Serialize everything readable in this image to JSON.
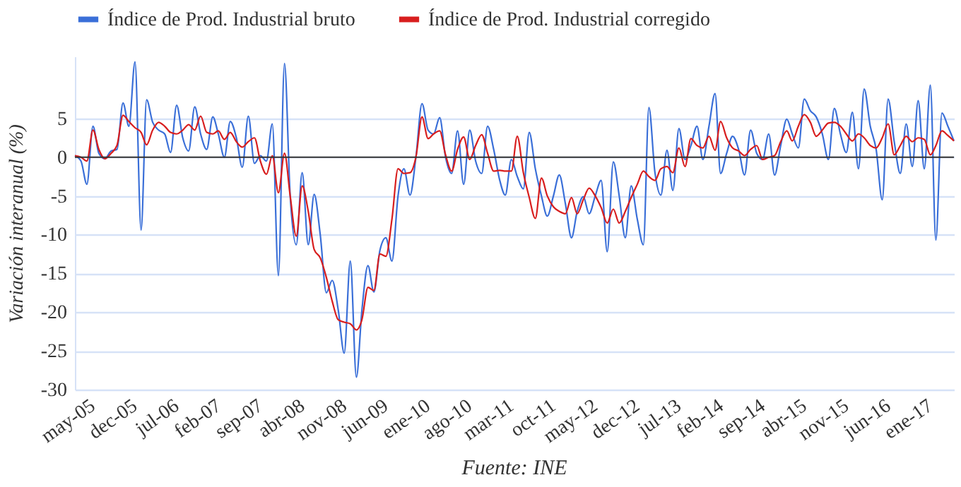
{
  "chart_data": {
    "type": "line",
    "ylabel": "Variación interanual (%)",
    "annotations": [
      "Fuente: INE"
    ],
    "x": [
      "2005-03",
      "2005-04",
      "2005-05",
      "2005-06",
      "2005-07",
      "2005-08",
      "2005-09",
      "2005-10",
      "2005-11",
      "2005-12",
      "2006-01",
      "2006-02",
      "2006-03",
      "2006-04",
      "2006-05",
      "2006-06",
      "2006-07",
      "2006-08",
      "2006-09",
      "2006-10",
      "2006-11",
      "2006-12",
      "2007-01",
      "2007-02",
      "2007-03",
      "2007-04",
      "2007-05",
      "2007-06",
      "2007-07",
      "2007-08",
      "2007-09",
      "2007-10",
      "2007-11",
      "2007-12",
      "2008-01",
      "2008-02",
      "2008-03",
      "2008-04",
      "2008-05",
      "2008-06",
      "2008-07",
      "2008-08",
      "2008-09",
      "2008-10",
      "2008-11",
      "2008-12",
      "2009-01",
      "2009-02",
      "2009-03",
      "2009-04",
      "2009-05",
      "2009-06",
      "2009-07",
      "2009-08",
      "2009-09",
      "2009-10",
      "2009-11",
      "2009-12",
      "2010-01",
      "2010-02",
      "2010-03",
      "2010-04",
      "2010-05",
      "2010-06",
      "2010-07",
      "2010-08",
      "2010-09",
      "2010-10",
      "2010-11",
      "2010-12",
      "2011-01",
      "2011-02",
      "2011-03",
      "2011-04",
      "2011-05",
      "2011-06",
      "2011-07",
      "2011-08",
      "2011-09",
      "2011-10",
      "2011-11",
      "2011-12",
      "2012-01",
      "2012-02",
      "2012-03",
      "2012-04",
      "2012-05",
      "2012-06",
      "2012-07",
      "2012-08",
      "2012-09",
      "2012-10",
      "2012-11",
      "2012-12",
      "2013-01",
      "2013-02",
      "2013-03",
      "2013-04",
      "2013-05",
      "2013-06",
      "2013-07",
      "2013-08",
      "2013-09",
      "2013-10",
      "2013-11",
      "2013-12",
      "2014-01",
      "2014-02",
      "2014-03",
      "2014-04",
      "2014-05",
      "2014-06",
      "2014-07",
      "2014-08",
      "2014-09",
      "2014-10",
      "2014-11",
      "2014-12",
      "2015-01",
      "2015-02",
      "2015-03",
      "2015-04",
      "2015-05",
      "2015-06",
      "2015-07",
      "2015-08",
      "2015-09",
      "2015-10",
      "2015-11",
      "2015-12",
      "2016-01",
      "2016-02",
      "2016-03",
      "2016-04",
      "2016-05",
      "2016-06",
      "2016-07",
      "2016-08",
      "2016-09",
      "2016-10",
      "2016-11",
      "2016-12",
      "2017-01",
      "2017-02",
      "2017-03",
      "2017-04",
      "2017-05",
      "2017-06"
    ],
    "series": [
      {
        "name": "Índice de Prod. Industrial bruto",
        "color": "#3a6fd8",
        "values": [
          0.2,
          -0.5,
          -3.5,
          4,
          0.5,
          -0.2,
          0.8,
          1,
          7,
          4,
          12.3,
          -9.4,
          7.4,
          4.5,
          3.5,
          3,
          0.6,
          6.7,
          2.5,
          0.8,
          6.5,
          3,
          1,
          5.2,
          3,
          0,
          4.6,
          2.5,
          -1.3,
          5.3,
          -0.8,
          0.2,
          -0.5,
          4.3,
          -15.3,
          12.1,
          -5,
          -11.3,
          -2,
          -11.3,
          -4.8,
          -10,
          -17.5,
          -15.9,
          -19.8,
          -25.3,
          -13.4,
          -28.4,
          -19.8,
          -14,
          -17.4,
          -12,
          -10.4,
          -13.4,
          -5,
          -1.5,
          -4.9,
          0,
          6.9,
          3.5,
          3,
          5.1,
          0,
          -2.1,
          3.4,
          -3.5,
          3.5,
          -0.5,
          -2.1,
          4,
          1,
          -3,
          -4.9,
          -0.3,
          -2.5,
          -4.1,
          3.2,
          -1.5,
          -5,
          -7.6,
          -5,
          -2.3,
          -6,
          -10.4,
          -7,
          -5.1,
          -7.3,
          -5,
          -3,
          -12.2,
          -0.6,
          -5,
          -10.4,
          -3.7,
          -8,
          -11.3,
          6.4,
          -2,
          -4.9,
          0.9,
          -4.3,
          3.7,
          -0.3,
          1.5,
          4,
          -0.3,
          4,
          8.2,
          -2.1,
          0.5,
          2.7,
          1,
          -2.3,
          3.5,
          0.5,
          -0.3,
          3,
          -2.3,
          1.5,
          4.9,
          3,
          1.2,
          7.5,
          6,
          5.2,
          3,
          -0.3,
          6.3,
          3,
          0.6,
          5.8,
          -1.5,
          8.8,
          4,
          1,
          -5.5,
          7.5,
          2,
          -2.1,
          4.3,
          -1.2,
          7.3,
          -1.5,
          9.3,
          -10.7,
          5.7,
          4,
          2.1
        ]
      },
      {
        "name": "Índice de Prod. Industrial corregido",
        "color": "#d81e1e",
        "values": [
          0.2,
          0,
          -0.5,
          3.5,
          1,
          -0.2,
          0.5,
          1.5,
          5.4,
          4.6,
          3.8,
          3.2,
          1.6,
          3.5,
          4.5,
          4,
          3.2,
          3,
          3.5,
          4.2,
          3.5,
          5.3,
          3.2,
          3,
          3.4,
          2.3,
          3.2,
          2,
          1.3,
          2,
          2.5,
          -0.5,
          -2.2,
          0.2,
          -4.6,
          0.5,
          -5,
          -10.2,
          -3.7,
          -7,
          -11.9,
          -13,
          -15.5,
          -18.6,
          -21,
          -21.3,
          -21.5,
          -22.3,
          -21,
          -16.8,
          -17.2,
          -12.5,
          -12.8,
          -8,
          -1.5,
          -2.1,
          -2,
          0,
          5.2,
          2.4,
          3,
          3.4,
          0.3,
          -1.8,
          1,
          2.6,
          -0.3,
          1.5,
          2.9,
          0.5,
          -1.8,
          -1.7,
          -1.8,
          -1.8,
          2.7,
          -2,
          -5.2,
          -7.9,
          -2.7,
          -5,
          -6.4,
          -7,
          -7.3,
          -5.2,
          -7.3,
          -5.5,
          -4,
          -5,
          -6.5,
          -8.5,
          -6.7,
          -8.5,
          -7,
          -5.2,
          -3.5,
          -1.8,
          -2.5,
          -3,
          -1.5,
          -1.2,
          -2,
          1.2,
          -1.2,
          2.4,
          1.5,
          1.2,
          2.7,
          0.9,
          4.6,
          2.5,
          1.2,
          0.8,
          0.2,
          1,
          1.5,
          -0.3,
          0,
          0.2,
          2,
          3.4,
          2.1,
          4,
          5.5,
          4.5,
          2.7,
          3.5,
          4.4,
          4.5,
          4,
          3,
          2.1,
          3,
          2.5,
          1.5,
          1.2,
          2.5,
          4.3,
          0.3,
          1.5,
          2.7,
          2,
          2.5,
          2.3,
          0.3,
          1.5,
          3.4,
          2.8,
          2.1
        ]
      }
    ],
    "xlim": [
      "2005-03",
      "2017-06"
    ],
    "xticks": [
      {
        "value": "2005-05",
        "label": "may-05"
      },
      {
        "value": "2005-12",
        "label": "dec-05"
      },
      {
        "value": "2006-07",
        "label": "jul-06"
      },
      {
        "value": "2007-02",
        "label": "feb-07"
      },
      {
        "value": "2007-09",
        "label": "sep-07"
      },
      {
        "value": "2008-04",
        "label": "abr-08"
      },
      {
        "value": "2008-11",
        "label": "nov-08"
      },
      {
        "value": "2009-06",
        "label": "jun-09"
      },
      {
        "value": "2010-01",
        "label": "ene-10"
      },
      {
        "value": "2010-08",
        "label": "ago-10"
      },
      {
        "value": "2011-03",
        "label": "mar-11"
      },
      {
        "value": "2011-10",
        "label": "oct-11"
      },
      {
        "value": "2012-05",
        "label": "may-12"
      },
      {
        "value": "2012-12",
        "label": "dec-12"
      },
      {
        "value": "2013-07",
        "label": "jul-13"
      },
      {
        "value": "2014-02",
        "label": "feb-14"
      },
      {
        "value": "2014-09",
        "label": "sep-14"
      },
      {
        "value": "2015-04",
        "label": "abr-15"
      },
      {
        "value": "2015-11",
        "label": "nov-15"
      },
      {
        "value": "2016-06",
        "label": "jun-16"
      },
      {
        "value": "2017-01",
        "label": "ene-17"
      }
    ],
    "ylim": [
      -30,
      13
    ],
    "yticks": [
      -30,
      -25,
      -20,
      -15,
      -10,
      -5,
      0,
      5
    ],
    "ref_lines": [
      {
        "axis": "y",
        "value": 0,
        "color": "#333333"
      }
    ],
    "grid": "y",
    "legend": "top",
    "line_style": "solid",
    "marker": "none"
  }
}
